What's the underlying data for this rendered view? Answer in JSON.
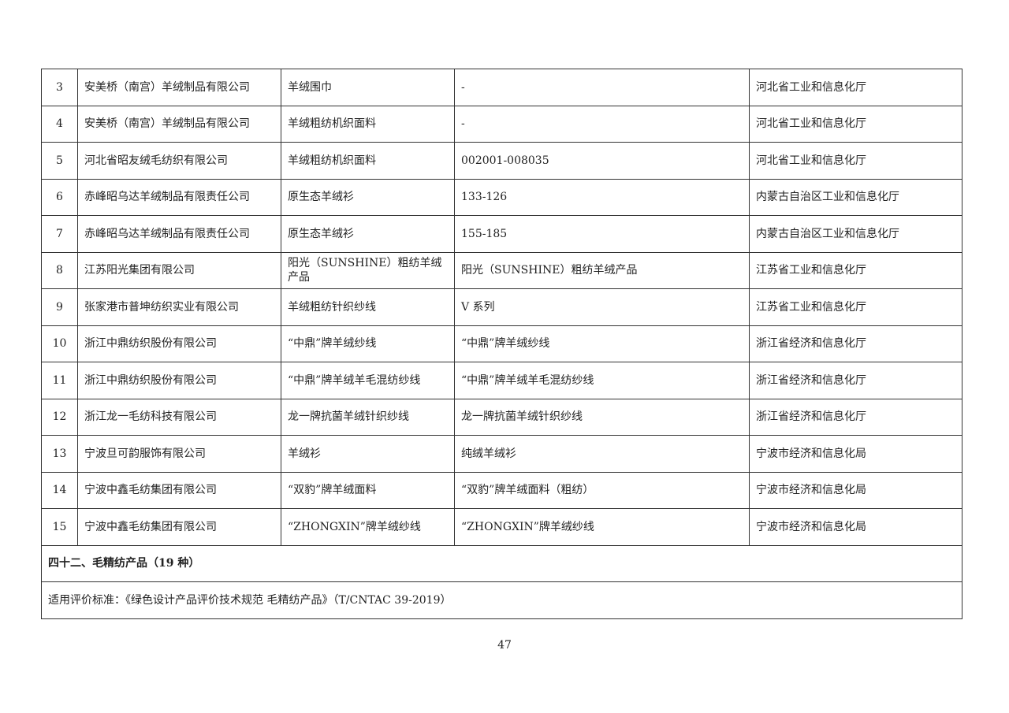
{
  "rows": [
    {
      "no": "3",
      "company": "安美桥（南宫）羊绒制品有限公司",
      "product": "羊绒围巾",
      "model": "-",
      "dept": "河北省工业和信息化厅"
    },
    {
      "no": "4",
      "company": "安美桥（南宫）羊绒制品有限公司",
      "product": "羊绒粗纺机织面料",
      "model": "-",
      "dept": "河北省工业和信息化厅"
    },
    {
      "no": "5",
      "company": "河北省昭友绒毛纺织有限公司",
      "product": "羊绒粗纺机织面料",
      "model": "002001-008035",
      "dept": "河北省工业和信息化厅"
    },
    {
      "no": "6",
      "company": "赤峰昭乌达羊绒制品有限责任公司",
      "product": "原生态羊绒衫",
      "model": "133-126",
      "dept": "内蒙古自治区工业和信息化厅"
    },
    {
      "no": "7",
      "company": "赤峰昭乌达羊绒制品有限责任公司",
      "product": "原生态羊绒衫",
      "model": "155-185",
      "dept": "内蒙古自治区工业和信息化厅"
    },
    {
      "no": "8",
      "company": "江苏阳光集团有限公司",
      "product": "阳光（SUNSHINE）粗纺羊绒产品",
      "model": "阳光（SUNSHINE）粗纺羊绒产品",
      "dept": "江苏省工业和信息化厅"
    },
    {
      "no": "9",
      "company": "张家港市普坤纺织实业有限公司",
      "product": "羊绒粗纺针织纱线",
      "model": "V 系列",
      "dept": "江苏省工业和信息化厅"
    },
    {
      "no": "10",
      "company": "浙江中鼎纺织股份有限公司",
      "product": "“中鼎”牌羊绒纱线",
      "model": "“中鼎”牌羊绒纱线",
      "dept": "浙江省经济和信息化厅"
    },
    {
      "no": "11",
      "company": "浙江中鼎纺织股份有限公司",
      "product": "“中鼎”牌羊绒羊毛混纺纱线",
      "model": "“中鼎”牌羊绒羊毛混纺纱线",
      "dept": "浙江省经济和信息化厅"
    },
    {
      "no": "12",
      "company": "浙江龙一毛纺科技有限公司",
      "product": "龙一牌抗菌羊绒针织纱线",
      "model": "龙一牌抗菌羊绒针织纱线",
      "dept": "浙江省经济和信息化厅"
    },
    {
      "no": "13",
      "company": "宁波旦可韵服饰有限公司",
      "product": "羊绒衫",
      "model": "纯绒羊绒衫",
      "dept": "宁波市经济和信息化局"
    },
    {
      "no": "14",
      "company": "宁波中鑫毛纺集团有限公司",
      "product": "“双豹”牌羊绒面料",
      "model": "“双豹”牌羊绒面料（粗纺）",
      "dept": "宁波市经济和信息化局"
    },
    {
      "no": "15",
      "company": "宁波中鑫毛纺集团有限公司",
      "product": "“ZHONGXIN”牌羊绒纱线",
      "model": "“ZHONGXIN”牌羊绒纱线",
      "dept": "宁波市经济和信息化局"
    }
  ],
  "section_title": "四十二、毛精纺产品（19 种）",
  "standard": "适用评价标准：《绿色设计产品评价技术规范 毛精纺产品》（T/CNTAC 39-2019）",
  "page_number": "47"
}
